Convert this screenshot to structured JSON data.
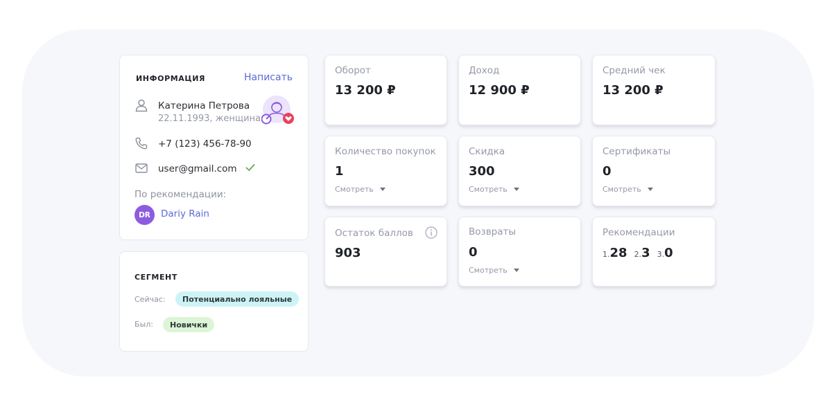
{
  "info": {
    "title": "ИНФОРМАЦИЯ",
    "write_link": "Написать",
    "name": "Катерина Петрова",
    "details": "22.11.1993, женщина",
    "phone": "+7 (123) 456-78-90",
    "email": "user@gmail.com",
    "recommended_label": "По рекомендации:",
    "recommender_initials": "DR",
    "recommender_name": "Dariy Rain"
  },
  "segment": {
    "title": "СЕГМЕНТ",
    "now_label": "Сейчас:",
    "now_value": "Потенциально лояльные",
    "was_label": "Был:",
    "was_value": "Новички"
  },
  "stats": {
    "turnover": {
      "label": "Оборот",
      "value": "13 200 ₽"
    },
    "income": {
      "label": "Доход",
      "value": "12 900 ₽"
    },
    "avg_check": {
      "label": "Средний чек",
      "value": "13 200 ₽"
    },
    "purchases": {
      "label": "Количество покупок",
      "value": "1",
      "link": "Смотреть"
    },
    "discount": {
      "label": "Скидка",
      "value": "300",
      "link": "Смотреть"
    },
    "certificates": {
      "label": "Сертификаты",
      "value": "0",
      "link": "Смотреть"
    },
    "points": {
      "label": "Остаток баллов",
      "value": "903"
    },
    "returns": {
      "label": "Возвраты",
      "value": "0",
      "link": "Смотреть"
    },
    "recommendations": {
      "label": "Рекомендации",
      "items": [
        {
          "num": "1.",
          "value": "28"
        },
        {
          "num": "2.",
          "value": "3"
        },
        {
          "num": "3.",
          "value": "0"
        }
      ]
    }
  },
  "colors": {
    "link": "#5b6bd6",
    "avatar": "#8c5ce0",
    "pill_now": "#cdf3f6",
    "pill_was": "#dcf5d6",
    "check": "#6aa84f"
  },
  "icons": {
    "name": "user-icon",
    "phone": "phone-icon",
    "email": "mail-icon",
    "verified": "check-icon",
    "persona": "persona-badge-icon",
    "points_info": "info-icon"
  }
}
